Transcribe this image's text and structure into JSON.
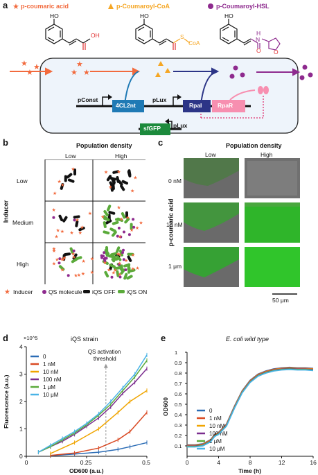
{
  "panel_a": {
    "letter": "a",
    "legend": {
      "coumaric": "p-coumaric acid",
      "coa": "p-Coumaroyl-CoA",
      "hsl": "p-Coumaroyl-HSL"
    },
    "atoms": {
      "oh": "OH",
      "s": "S",
      "coa": "CoA",
      "ho": "HO",
      "h": "H",
      "n": "N",
      "o": "O"
    },
    "genes": {
      "pconst": "pConst",
      "enzyme": "4CL2nt",
      "plux1": "pLux",
      "rpai": "RpaI",
      "rpar": "RpaR",
      "sfgfp": "sfGFP",
      "plux2": "pLux"
    },
    "colors": {
      "orange": "#f26a3d",
      "gold": "#f5a623",
      "purple": "#8e2a8e",
      "enzyme": "#1f7ab5",
      "rpai": "#2c3587",
      "rpar": "#f78fb0",
      "gfp": "#1c8a3c"
    }
  },
  "panel_b": {
    "letter": "b",
    "title": "Population density",
    "col_low": "Low",
    "col_high": "High",
    "row_title": "Inducer",
    "rows": [
      "Low",
      "Medium",
      "High"
    ],
    "legend": [
      "Inducer",
      "QS molecule",
      "iQS OFF",
      "iQS ON"
    ]
  },
  "panel_c": {
    "letter": "c",
    "title": "Population density",
    "col_low": "Low",
    "col_high": "High",
    "row_title": "p-coumaric acid",
    "rows": [
      "0 nM",
      "15 nM",
      "1 μm"
    ],
    "scale": "50 μm"
  },
  "panel_d": {
    "letter": "d",
    "chart_data": {
      "type": "line",
      "title": "iQS strain",
      "xlabel": "OD600 (a.u.)",
      "ylabel": "Fluorescence (a.u.)",
      "multiplier": "×10^5",
      "xlim": [
        0,
        0.5
      ],
      "ylim": [
        0,
        4
      ],
      "xticks": [
        "0",
        "0.25",
        "0.5"
      ],
      "yticks": [
        "0",
        "1",
        "2",
        "3",
        "4"
      ],
      "annotation": "QS activation threshold",
      "threshold_x": 0.33,
      "series": [
        {
          "name": "0",
          "color": "#2b6cb5",
          "x": [
            0.1,
            0.2,
            0.3,
            0.38,
            0.43,
            0.5
          ],
          "y": [
            0.02,
            0.08,
            0.15,
            0.25,
            0.35,
            0.5
          ]
        },
        {
          "name": "1 nM",
          "color": "#d94a24",
          "x": [
            0.1,
            0.2,
            0.3,
            0.38,
            0.43,
            0.5
          ],
          "y": [
            0.03,
            0.12,
            0.3,
            0.6,
            0.9,
            1.6
          ]
        },
        {
          "name": "10 nM",
          "color": "#f0a500",
          "x": [
            0.1,
            0.2,
            0.3,
            0.38,
            0.43,
            0.5
          ],
          "y": [
            0.1,
            0.5,
            1.0,
            1.6,
            2.0,
            2.4
          ]
        },
        {
          "name": "100 nM",
          "color": "#7b2d8e",
          "x": [
            0.05,
            0.1,
            0.15,
            0.2,
            0.25,
            0.3,
            0.35,
            0.4,
            0.45,
            0.5
          ],
          "y": [
            0.15,
            0.35,
            0.55,
            0.8,
            1.1,
            1.4,
            1.8,
            2.3,
            2.7,
            3.2
          ]
        },
        {
          "name": "1 μM",
          "color": "#5aaa3a",
          "x": [
            0.05,
            0.1,
            0.15,
            0.2,
            0.25,
            0.3,
            0.35,
            0.4,
            0.45,
            0.5
          ],
          "y": [
            0.15,
            0.35,
            0.6,
            0.85,
            1.15,
            1.5,
            1.9,
            2.4,
            2.9,
            3.5
          ]
        },
        {
          "name": "10 μM",
          "color": "#4ab3e6",
          "x": [
            0.05,
            0.1,
            0.15,
            0.2,
            0.25,
            0.3,
            0.35,
            0.4,
            0.45,
            0.5
          ],
          "y": [
            0.15,
            0.4,
            0.65,
            0.9,
            1.2,
            1.55,
            2.0,
            2.5,
            3.0,
            3.7
          ]
        }
      ]
    }
  },
  "panel_e": {
    "letter": "e",
    "chart_data": {
      "type": "line",
      "title": "E. coli wild type",
      "xlabel": "Time (h)",
      "ylabel": "OD600",
      "xlim": [
        0,
        16
      ],
      "ylim": [
        0,
        1.0
      ],
      "xticks": [
        "0",
        "4",
        "8",
        "12",
        "16"
      ],
      "yticks": [
        "0.1",
        "0.2",
        "0.3",
        "0.4",
        "0.5",
        "0.6",
        "0.7",
        "0.8",
        "0.9",
        "1"
      ],
      "series": [
        {
          "name": "0",
          "color": "#2b6cb5"
        },
        {
          "name": "1 nM",
          "color": "#d94a24"
        },
        {
          "name": "10 nM",
          "color": "#f0a500"
        },
        {
          "name": "100 nM",
          "color": "#7b2d8e"
        },
        {
          "name": "1 μM",
          "color": "#5aaa3a"
        },
        {
          "name": "10 μM",
          "color": "#4ab3e6"
        }
      ],
      "curve": {
        "x": [
          0,
          1,
          2,
          3,
          3.5,
          4,
          5,
          6,
          7,
          8,
          9,
          10,
          11,
          12,
          13,
          14,
          15,
          16
        ],
        "y": [
          0.1,
          0.1,
          0.11,
          0.15,
          0.2,
          0.22,
          0.3,
          0.47,
          0.62,
          0.72,
          0.78,
          0.81,
          0.83,
          0.84,
          0.845,
          0.84,
          0.84,
          0.835
        ]
      }
    }
  }
}
